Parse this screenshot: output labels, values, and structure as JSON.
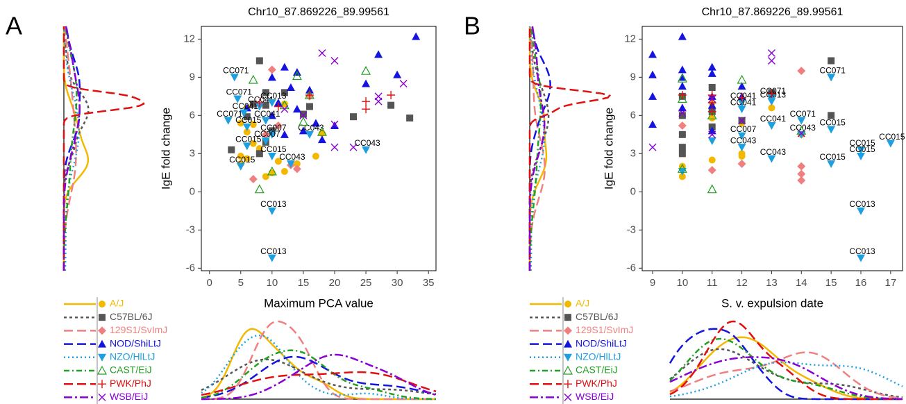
{
  "chart_data": [
    {
      "type": "scatter",
      "panel_label": "A",
      "title": "Chr10_87.869226_89.99561",
      "x_label": "Maximum PCA value",
      "y_label": "IgE fold change",
      "xlim": [
        -1.3,
        36.2
      ],
      "ylim": [
        -6.2,
        13
      ],
      "xticks": [
        0,
        5,
        10,
        15,
        20,
        25,
        30,
        35
      ],
      "yticks": [
        -6,
        -3,
        0,
        3,
        6,
        9,
        12
      ],
      "series": [
        {
          "name": "A/J",
          "color": "#f5b800",
          "marker": "circle",
          "dash": "solid",
          "x": [
            6,
            5,
            6,
            7,
            5,
            5,
            6,
            9,
            10,
            12,
            8,
            14,
            12,
            7,
            17,
            18,
            11
          ],
          "values": [
            6.6,
            5.4,
            4.7,
            3.8,
            2.8,
            2.2,
            2.6,
            1.2,
            1.5,
            1.6,
            3.4,
            2.2,
            6.9,
            5.3,
            2.8,
            4.6,
            2.4
          ]
        },
        {
          "name": "C57BL/6J",
          "color": "#555555",
          "marker": "square",
          "dash": "dashed",
          "x": [
            8,
            9,
            7,
            9,
            6,
            3.5,
            8,
            12,
            15,
            16,
            23,
            29,
            32,
            10,
            9
          ],
          "values": [
            10.3,
            7.8,
            6.9,
            6.8,
            5.9,
            3.3,
            3.0,
            7.8,
            6.1,
            6.7,
            5.9,
            6.8,
            5.8,
            4.8,
            3.9
          ]
        },
        {
          "name": "129S1/SvImJ",
          "color": "#f08080",
          "marker": "diamond",
          "dash": "longdash",
          "x": [
            10,
            7,
            13,
            14,
            16,
            9,
            11
          ],
          "values": [
            9.6,
            1.0,
            2.1,
            1.8,
            7.5,
            4.5,
            5.2
          ]
        },
        {
          "name": "NOD/ShiLtJ",
          "color": "#1414e0",
          "marker": "triangle-up",
          "dash": "longdash",
          "x": [
            33,
            27,
            30,
            25,
            12,
            14,
            10,
            11,
            13,
            16,
            17,
            20,
            15,
            12,
            10,
            14,
            6,
            18
          ],
          "values": [
            12.2,
            10.8,
            9.2,
            8.5,
            9.8,
            9.4,
            9.0,
            7.0,
            8.2,
            8.0,
            5.4,
            5.2,
            4.8,
            4.5,
            6.0,
            6.5,
            6.6,
            4.1
          ]
        },
        {
          "name": "NZO/HlLtJ",
          "color": "#1ea0e0",
          "marker": "triangle-down",
          "dash": "dotted",
          "x": [
            4,
            4.5,
            3,
            5.5,
            8,
            10,
            9,
            10,
            9,
            16,
            13,
            25,
            6,
            6,
            10,
            5,
            10,
            10
          ],
          "values": [
            9.0,
            7.3,
            5.6,
            6.2,
            6.7,
            7.0,
            5.6,
            4.5,
            4.0,
            4.5,
            2.2,
            3.3,
            5.1,
            3.6,
            2.8,
            2.0,
            -1.5,
            -5.2
          ],
          "labels": [
            "CC071",
            "CC071",
            "CC071",
            "CC041",
            "CC041",
            "CC013",
            "CC041",
            "CC007",
            "CC007",
            "CC043",
            "CC043",
            "CC043",
            "CC015",
            "CC015",
            "CC015",
            "CC015",
            "CC013",
            "CC013"
          ]
        },
        {
          "name": "CAST/EiJ",
          "color": "#22a022",
          "marker": "triangle-open",
          "dash": "dotdash",
          "x": [
            7,
            14,
            10,
            8,
            18,
            15,
            25,
            16,
            12
          ],
          "values": [
            8.8,
            9.1,
            1.6,
            0.2,
            4.7,
            5.5,
            9.5,
            7.6,
            6.8
          ]
        },
        {
          "name": "PWK/PhJ",
          "color": "#e01010",
          "marker": "plus",
          "dash": "longdash",
          "x": [
            16,
            25,
            25,
            29,
            11,
            8
          ],
          "values": [
            7.6,
            7.1,
            6.5,
            7.6,
            6.7,
            7.0
          ]
        },
        {
          "name": "WSB/EiJ",
          "color": "#8a00d4",
          "marker": "cross",
          "dash": "twodash",
          "x": [
            18,
            20,
            31,
            27,
            27,
            20,
            20,
            23,
            15,
            12
          ],
          "values": [
            10.9,
            10.3,
            8.5,
            7.5,
            7.1,
            5.3,
            3.5,
            3.5,
            6.0,
            6.5
          ]
        }
      ]
    },
    {
      "type": "scatter",
      "panel_label": "B",
      "title": "Chr10_87.869226_89.99561",
      "x_label": "S. v. expulsion date",
      "y_label": "IgE fold change",
      "xlim": [
        8.65,
        17.4
      ],
      "ylim": [
        -6.2,
        13
      ],
      "xticks": [
        9,
        10,
        11,
        12,
        13,
        14,
        15,
        16,
        17
      ],
      "yticks": [
        -6,
        -3,
        0,
        3,
        6,
        9,
        12
      ],
      "series": [
        {
          "name": "A/J",
          "color": "#f5b800",
          "marker": "circle",
          "dash": "solid",
          "x": [
            10,
            10,
            11,
            11,
            12,
            12,
            13,
            14,
            12,
            11
          ],
          "values": [
            1.2,
            2.0,
            2.5,
            5.8,
            5.4,
            3.0,
            6.6,
            4.5,
            2.8,
            7.0
          ]
        },
        {
          "name": "C57BL/6J",
          "color": "#555555",
          "marker": "square",
          "dash": "dashed",
          "x": [
            10,
            10,
            10,
            10,
            11,
            11,
            11,
            12,
            13,
            15,
            15,
            10
          ],
          "values": [
            7.5,
            6.0,
            4.5,
            3.5,
            8.2,
            6.3,
            5.1,
            5.6,
            7.8,
            10.3,
            6.0,
            3.0
          ]
        },
        {
          "name": "129S1/SvImJ",
          "color": "#f08080",
          "marker": "diamond",
          "dash": "longdash",
          "x": [
            14,
            14,
            14,
            14,
            11,
            12,
            10
          ],
          "values": [
            9.5,
            2.0,
            1.4,
            0.9,
            1.7,
            2.2,
            5.2
          ]
        },
        {
          "name": "NOD/ShiLtJ",
          "color": "#1414e0",
          "marker": "triangle-up",
          "dash": "longdash",
          "x": [
            9,
            9,
            9,
            9,
            10,
            10,
            10,
            10,
            11,
            11,
            11,
            11,
            12,
            12,
            11,
            10
          ],
          "values": [
            10.8,
            9.2,
            7.5,
            5.3,
            12.2,
            9.6,
            9.0,
            8.3,
            9.8,
            9.3,
            7.5,
            6.8,
            8.3,
            7.5,
            4.8,
            6.6
          ]
        },
        {
          "name": "NZO/HlLtJ",
          "color": "#1ea0e0",
          "marker": "triangle-down",
          "dash": "dotted",
          "x": [
            15,
            13,
            14,
            12,
            12,
            13,
            13,
            12,
            14,
            12,
            13,
            15,
            16,
            16,
            17,
            15,
            16,
            16,
            10,
            11
          ],
          "values": [
            9.0,
            7.4,
            5.6,
            7.0,
            6.5,
            5.2,
            7.1,
            4.4,
            4.5,
            3.5,
            2.6,
            4.9,
            3.3,
            2.8,
            3.8,
            2.2,
            -1.5,
            -5.2,
            1.6,
            4.0
          ],
          "labels": [
            "CC071",
            "CC071",
            "CC071",
            "CC041",
            "CC041",
            "CC041",
            "CC013",
            "CC007",
            "CC043",
            "CC043",
            "CC043",
            "CC015",
            "CC015",
            "CC015",
            "CC015",
            "CC015",
            "CC013",
            "CC013",
            null,
            null
          ]
        },
        {
          "name": "CAST/EiJ",
          "color": "#22a022",
          "marker": "triangle-open",
          "dash": "dotdash",
          "x": [
            10,
            10,
            11,
            12,
            11,
            14,
            10
          ],
          "values": [
            8.9,
            7.3,
            0.2,
            8.8,
            6.0,
            4.8,
            1.8
          ]
        },
        {
          "name": "PWK/PhJ",
          "color": "#e01010",
          "marker": "plus",
          "dash": "longdash",
          "x": [
            10,
            11,
            11,
            12,
            13,
            11
          ],
          "values": [
            7.6,
            7.6,
            7.0,
            7.4,
            7.7,
            6.3
          ]
        },
        {
          "name": "WSB/EiJ",
          "color": "#8a00d4",
          "marker": "cross",
          "dash": "twodash",
          "x": [
            9,
            13,
            13,
            11,
            11,
            10,
            12,
            14
          ],
          "values": [
            3.5,
            10.9,
            10.3,
            7.3,
            4.5,
            6.2,
            5.6,
            4.6
          ]
        }
      ]
    }
  ]
}
